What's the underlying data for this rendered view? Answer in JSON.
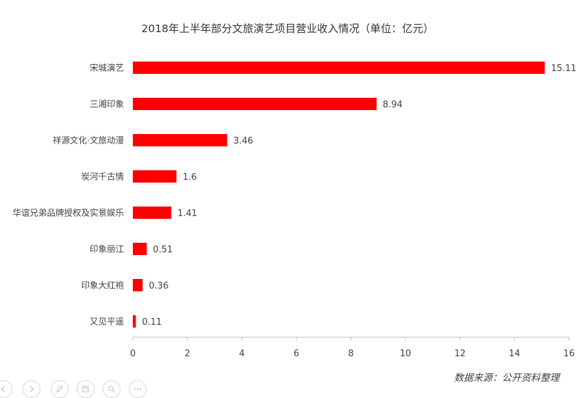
{
  "chart_data": {
    "type": "bar",
    "orientation": "horizontal",
    "title": "2018年上半年部分文旅演艺项目营业收入情况（单位：亿元）",
    "categories": [
      "宋城演艺",
      "三湘印象",
      "祥源文化·文旅动漫",
      "炭河千古情",
      "华谊兄弟品牌授权及实景娱乐",
      "印象丽江",
      "印象大红袍",
      "又见平遥"
    ],
    "values": [
      15.11,
      8.94,
      3.46,
      1.6,
      1.41,
      0.51,
      0.36,
      0.11
    ],
    "value_labels": [
      "15.11",
      "8.94",
      "3.46",
      "1.6",
      "1.41",
      "0.51",
      "0.36",
      "0.11"
    ],
    "xlim": [
      0,
      16
    ],
    "xticks": [
      "0",
      "2",
      "4",
      "6",
      "8",
      "10",
      "12",
      "14",
      "16"
    ],
    "bar_color": "#ff0000",
    "grid": false,
    "legend": false
  },
  "source_text": "数据来源：公开资料整理",
  "toolbar": {
    "buttons": [
      "prev-icon",
      "next-icon",
      "pen-icon",
      "save-icon",
      "zoom-icon",
      "more-icon"
    ]
  }
}
